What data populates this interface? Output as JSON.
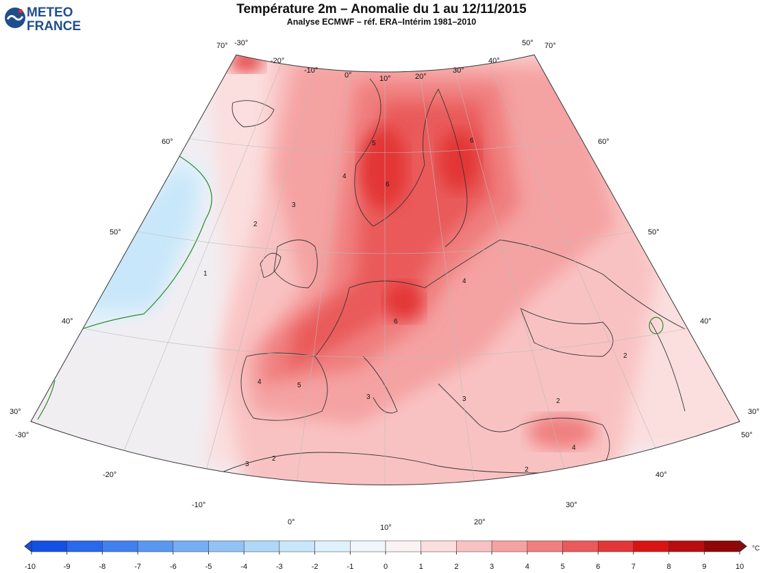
{
  "header": {
    "title": "Température 2m – Anomalie du 1 au 12/11/2015",
    "subtitle": "Analyse ECMWF – réf. ERA–Intérim 1981–2010"
  },
  "logo": {
    "line1": "METEO",
    "line2": "FRANCE",
    "colors": {
      "text": "#1f4e8c",
      "disc_blue": "#1f4e8c",
      "disc_white": "#ffffff",
      "accent_red": "#e03020"
    }
  },
  "map": {
    "projection": "conic",
    "lon_range": [
      -30,
      50
    ],
    "lat_range": [
      30,
      70
    ],
    "lon_labels": [
      "-30°",
      "-20°",
      "-10°",
      "0°",
      "10°",
      "20°",
      "30°",
      "40°",
      "50°"
    ],
    "lat_labels_left": [
      "70°",
      "60°",
      "50°",
      "40°",
      "30°"
    ],
    "lat_labels_right": [
      "70°",
      "60°",
      "50°",
      "40°",
      "30°"
    ],
    "bottom_lon_labels": [
      "-30°",
      "-20°",
      "-10°",
      "0°",
      "10°",
      "20°",
      "30°",
      "40°",
      "50°"
    ],
    "contour_labels": [
      "1",
      "2",
      "2",
      "2",
      "2",
      "2",
      "3",
      "3",
      "3",
      "3",
      "4",
      "4",
      "4",
      "4",
      "5",
      "5",
      "6",
      "6",
      "6"
    ],
    "anomaly_regions": [
      {
        "name": "scandinavia-max",
        "value": 7
      },
      {
        "name": "central-europe-max",
        "value": 7
      },
      {
        "name": "iberia-france",
        "value": 5
      },
      {
        "name": "atlantic-cold",
        "value": -1
      }
    ]
  },
  "colorbar": {
    "unit": "°C",
    "ticks": [
      "-10",
      "-9",
      "-8",
      "-7",
      "-6",
      "-5",
      "-4",
      "-3",
      "-2",
      "-1",
      "0",
      "1",
      "2",
      "3",
      "4",
      "5",
      "6",
      "7",
      "8",
      "9",
      "10"
    ],
    "colors": [
      "#1450e6",
      "#2a68ec",
      "#4180ee",
      "#5a97f0",
      "#76adf3",
      "#93c3f6",
      "#afd7f8",
      "#c9e7fa",
      "#dff1fb",
      "#f1f6fb",
      "#fbf3f3",
      "#fbdede",
      "#f9c2c2",
      "#f5a2a2",
      "#f07f7f",
      "#ea5a5a",
      "#e33636",
      "#d91414",
      "#b90d0d",
      "#900707"
    ]
  }
}
